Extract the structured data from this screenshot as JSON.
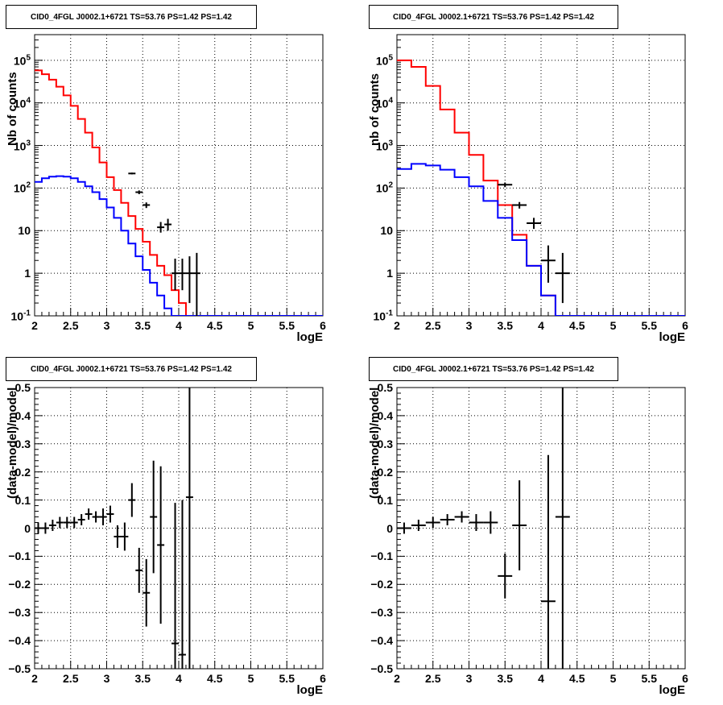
{
  "chart_data": [
    {
      "type": "line",
      "title": "CID0_4FGL J0002.1+6721 TS=53.76 PS=1.42 PS=1.42",
      "xlabel": "logE",
      "ylabel": "Nb of counts",
      "xlim": [
        2,
        6
      ],
      "ylim": [
        0.1,
        400000
      ],
      "yscale": "log",
      "grid": true,
      "xticks": [
        "2",
        "2.5",
        "3",
        "3.5",
        "4",
        "4.5",
        "5",
        "5.5",
        "6"
      ],
      "yticks": [
        {
          "v": 0.1,
          "base": "10",
          "exp": "-1"
        },
        {
          "v": 1,
          "base": "1",
          "exp": ""
        },
        {
          "v": 10,
          "base": "10",
          "exp": ""
        },
        {
          "v": 100,
          "base": "10",
          "exp": "2"
        },
        {
          "v": 1000,
          "base": "10",
          "exp": "3"
        },
        {
          "v": 10000,
          "base": "10",
          "exp": "4"
        },
        {
          "v": 100000,
          "base": "10",
          "exp": "5"
        }
      ],
      "series": [
        {
          "color": "#ff0000",
          "style": "hist",
          "binwidth": 0.1,
          "x0": 2.0,
          "values": [
            58000,
            47000,
            35000,
            24000,
            15000,
            8500,
            4200,
            2000,
            900,
            400,
            180,
            90,
            45,
            22,
            11,
            5.5,
            2.7,
            1.5,
            0.9,
            0.4,
            0.2,
            0.1,
            0.1,
            0.1,
            0.1,
            0.1,
            0.1,
            0.1,
            0.1,
            0.1,
            0.1,
            0.1,
            0.1,
            0.1,
            0.1,
            0.1,
            0.1,
            0.1,
            0.1,
            0.1
          ]
        },
        {
          "color": "#0000ff",
          "style": "hist",
          "binwidth": 0.1,
          "x0": 2.0,
          "values": [
            140,
            170,
            185,
            190,
            185,
            170,
            140,
            110,
            80,
            55,
            35,
            20,
            10,
            5,
            2.5,
            1.2,
            0.6,
            0.3,
            0.15,
            0.1,
            0.1,
            0.1,
            0.1,
            0.1,
            0.1,
            0.1,
            0.1,
            0.1,
            0.1,
            0.1,
            0.1,
            0.1,
            0.1,
            0.1,
            0.1,
            0.1,
            0.1,
            0.1,
            0.1,
            0.1
          ]
        },
        {
          "color": "#000000",
          "style": "points",
          "xerr": 0.05,
          "x": [
            3.35,
            3.45,
            3.55,
            3.75,
            3.85,
            3.95,
            4.05,
            4.15,
            4.25
          ],
          "y": [
            220,
            80,
            40,
            12,
            14,
            1,
            1,
            1,
            1
          ],
          "yerr_lo": [
            10,
            8,
            6,
            3,
            4,
            0.6,
            0.6,
            0.8,
            0.9
          ],
          "yerr_hi": [
            10,
            8,
            6,
            4,
            5,
            1.2,
            1.2,
            1.5,
            2
          ]
        }
      ]
    },
    {
      "type": "line",
      "title": "CID0_4FGL J0002.1+6721 TS=53.76 PS=1.42 PS=1.42",
      "xlabel": "logE",
      "ylabel": "nb of counts",
      "xlim": [
        2,
        6
      ],
      "ylim": [
        0.1,
        400000
      ],
      "yscale": "log",
      "grid": true,
      "xticks": [
        "2",
        "2.5",
        "3",
        "3.5",
        "4",
        "4.5",
        "5",
        "5.5",
        "6"
      ],
      "yticks": [
        {
          "v": 0.1,
          "base": "10",
          "exp": "-1"
        },
        {
          "v": 1,
          "base": "1",
          "exp": ""
        },
        {
          "v": 10,
          "base": "10",
          "exp": ""
        },
        {
          "v": 100,
          "base": "10",
          "exp": "2"
        },
        {
          "v": 1000,
          "base": "10",
          "exp": "3"
        },
        {
          "v": 10000,
          "base": "10",
          "exp": "4"
        },
        {
          "v": 100000,
          "base": "10",
          "exp": "5"
        }
      ],
      "series": [
        {
          "color": "#ff0000",
          "style": "hist",
          "binwidth": 0.2,
          "x0": 2.0,
          "values": [
            100000,
            70000,
            25000,
            7000,
            2000,
            600,
            150,
            40,
            8,
            1.5,
            0.3,
            0.1,
            0.1,
            0.1,
            0.1,
            0.1,
            0.1,
            0.1,
            0.1,
            0.1
          ]
        },
        {
          "color": "#0000ff",
          "style": "hist",
          "binwidth": 0.2,
          "x0": 2.0,
          "values": [
            280,
            370,
            340,
            270,
            180,
            110,
            50,
            20,
            6,
            1.5,
            0.3,
            0.1,
            0.1,
            0.1,
            0.1,
            0.1,
            0.1,
            0.1,
            0.1,
            0.1
          ]
        },
        {
          "color": "#000000",
          "style": "points",
          "xerr": 0.1,
          "x": [
            3.5,
            3.7,
            3.9,
            4.1,
            4.3
          ],
          "y": [
            120,
            40,
            15,
            2,
            1
          ],
          "yerr_lo": [
            15,
            7,
            4,
            1.4,
            0.8
          ],
          "yerr_hi": [
            15,
            7,
            5,
            2.5,
            2
          ]
        }
      ]
    },
    {
      "type": "scatter",
      "title": "CID0_4FGL J0002.1+6721 TS=53.76 PS=1.42 PS=1.42",
      "xlabel": "logE",
      "ylabel": "(data-model)/model",
      "xlim": [
        2,
        6
      ],
      "ylim": [
        -0.5,
        0.5
      ],
      "grid": true,
      "xticks": [
        "2",
        "2.5",
        "3",
        "3.5",
        "4",
        "4.5",
        "5",
        "5.5",
        "6"
      ],
      "ytick_values": [
        -0.5,
        -0.4,
        -0.3,
        -0.2,
        -0.1,
        0,
        0.1,
        0.2,
        0.3,
        0.4,
        0.5
      ],
      "ytick_labels": [
        "−0.5",
        "−0.4",
        "−0.3",
        "−0.2",
        "−0.1",
        "0",
        "0.1",
        "0.2",
        "0.3",
        "0.4",
        "0.5"
      ],
      "series": [
        {
          "color": "#000000",
          "style": "points",
          "xerr": 0.05,
          "x": [
            2.05,
            2.15,
            2.25,
            2.35,
            2.45,
            2.55,
            2.65,
            2.75,
            2.85,
            2.95,
            3.05,
            3.15,
            3.25,
            3.35,
            3.45,
            3.55,
            3.65,
            3.75,
            3.95,
            4.05,
            4.15
          ],
          "y": [
            0.0,
            0.0,
            0.01,
            0.02,
            0.02,
            0.02,
            0.03,
            0.05,
            0.04,
            0.04,
            0.05,
            -0.03,
            -0.03,
            0.1,
            -0.15,
            -0.23,
            0.04,
            -0.06,
            -0.41,
            -0.45,
            0.11
          ],
          "yerr": [
            0.02,
            0.02,
            0.02,
            0.02,
            0.02,
            0.02,
            0.02,
            0.02,
            0.02,
            0.03,
            0.03,
            0.04,
            0.05,
            0.06,
            0.08,
            0.12,
            0.2,
            0.28,
            0.5,
            0.55,
            0.7
          ]
        }
      ]
    },
    {
      "type": "scatter",
      "title": "CID0_4FGL J0002.1+6721 TS=53.76 PS=1.42 PS=1.42",
      "xlabel": "logE",
      "ylabel": "(data-model)/model",
      "xlim": [
        2,
        6
      ],
      "ylim": [
        -0.5,
        0.5
      ],
      "grid": true,
      "xticks": [
        "2",
        "2.5",
        "3",
        "3.5",
        "4",
        "4.5",
        "5",
        "5.5",
        "6"
      ],
      "ytick_values": [
        -0.5,
        -0.4,
        -0.3,
        -0.2,
        -0.1,
        0,
        0.1,
        0.2,
        0.3,
        0.4,
        0.5
      ],
      "ytick_labels": [
        "−0.5",
        "−0.4",
        "−0.3",
        "−0.2",
        "−0.1",
        "0",
        "0.1",
        "0.2",
        "0.3",
        "0.4",
        "0.5"
      ],
      "series": [
        {
          "color": "#000000",
          "style": "points",
          "xerr": 0.1,
          "x": [
            2.1,
            2.3,
            2.5,
            2.7,
            2.9,
            3.1,
            3.3,
            3.5,
            3.7,
            4.1,
            4.3
          ],
          "y": [
            0.0,
            0.01,
            0.02,
            0.03,
            0.04,
            0.02,
            0.02,
            -0.17,
            0.01,
            -0.26,
            0.04
          ],
          "yerr": [
            0.02,
            0.02,
            0.02,
            0.02,
            0.02,
            0.03,
            0.04,
            0.08,
            0.16,
            0.52,
            0.6
          ]
        }
      ]
    }
  ]
}
